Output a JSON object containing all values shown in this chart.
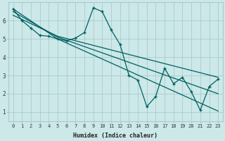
{
  "xlabel": "Humidex (Indice chaleur)",
  "bg_color": "#cce8e8",
  "grid_color": "#aacccc",
  "line_color": "#006060",
  "xlim": [
    -0.5,
    23.5
  ],
  "ylim": [
    0.5,
    7.0
  ],
  "xticks": [
    0,
    1,
    2,
    3,
    4,
    5,
    6,
    7,
    8,
    9,
    10,
    11,
    12,
    13,
    14,
    15,
    16,
    17,
    18,
    19,
    20,
    21,
    22,
    23
  ],
  "yticks": [
    1,
    2,
    3,
    4,
    5,
    6
  ],
  "series_x": [
    0,
    1,
    2,
    3,
    4,
    5,
    6,
    7,
    8,
    9,
    10,
    11,
    12,
    13,
    14,
    15,
    16,
    17,
    18,
    19,
    20,
    21,
    22,
    23
  ],
  "series_y": [
    6.65,
    6.0,
    5.6,
    5.2,
    5.15,
    5.0,
    4.9,
    5.05,
    5.35,
    6.7,
    6.5,
    5.5,
    4.7,
    3.0,
    2.75,
    1.3,
    1.85,
    3.4,
    2.55,
    2.9,
    2.1,
    1.1,
    2.4,
    2.8
  ],
  "line1_x": [
    0,
    5,
    23
  ],
  "line1_y": [
    6.65,
    5.0,
    1.05
  ],
  "line2_x": [
    0,
    5,
    23
  ],
  "line2_y": [
    6.3,
    5.15,
    2.9
  ],
  "line3_x": [
    0,
    5,
    23
  ],
  "line3_y": [
    6.5,
    5.1,
    2.0
  ]
}
